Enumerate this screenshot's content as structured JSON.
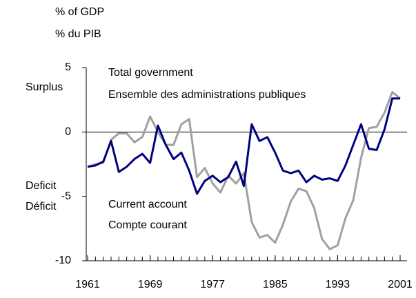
{
  "chart_data": {
    "type": "line",
    "axis_labels": [
      "% of GDP",
      "% du PIB"
    ],
    "side_labels": {
      "surplus": "Surplus",
      "deficit": [
        "Deficit",
        "Déficit"
      ]
    },
    "x": [
      1961,
      1962,
      1963,
      1964,
      1965,
      1966,
      1967,
      1968,
      1969,
      1970,
      1971,
      1972,
      1973,
      1974,
      1975,
      1976,
      1977,
      1978,
      1979,
      1980,
      1981,
      1982,
      1983,
      1984,
      1985,
      1986,
      1987,
      1988,
      1989,
      1990,
      1991,
      1992,
      1993,
      1994,
      1995,
      1996,
      1997,
      1998,
      1999,
      2000,
      2001
    ],
    "series": [
      {
        "labels": [
          "Current account",
          "Compte courant"
        ],
        "color": "#000080",
        "values": [
          -2.7,
          -2.6,
          -2.3,
          -0.7,
          -3.1,
          -2.7,
          -2.1,
          -1.7,
          -2.4,
          0.5,
          -1.0,
          -2.1,
          -1.6,
          -3.0,
          -4.8,
          -3.8,
          -3.4,
          -3.9,
          -3.5,
          -2.3,
          -4.2,
          0.6,
          -0.7,
          -0.4,
          -1.6,
          -3.0,
          -3.2,
          -3.0,
          -3.9,
          -3.4,
          -3.7,
          -3.6,
          -3.8,
          -2.6,
          -1.0,
          0.6,
          -1.3,
          -1.4,
          0.2,
          2.6,
          2.6
        ]
      },
      {
        "labels": [
          "Total government",
          "Ensemble des administrations publiques"
        ],
        "color": "#a0a0a0",
        "values": [
          -2.7,
          -2.5,
          -2.4,
          -0.6,
          -0.1,
          -0.1,
          -0.8,
          -0.4,
          1.2,
          0.0,
          -1.0,
          -1.0,
          0.6,
          1.0,
          -3.5,
          -2.8,
          -4.0,
          -4.7,
          -3.4,
          -4.0,
          -3.2,
          -7.0,
          -8.2,
          -8.0,
          -8.6,
          -7.2,
          -5.4,
          -4.4,
          -4.6,
          -5.9,
          -8.3,
          -9.1,
          -8.8,
          -6.7,
          -5.3,
          -2.0,
          0.3,
          0.4,
          1.5,
          3.1,
          2.6
        ]
      }
    ],
    "xlim": [
      1961,
      2001
    ],
    "xticks": [
      1961,
      1969,
      1977,
      1985,
      1993,
      2001
    ],
    "ylim": [
      -10,
      5
    ],
    "yticks": [
      5,
      0,
      -5,
      -10
    ]
  }
}
